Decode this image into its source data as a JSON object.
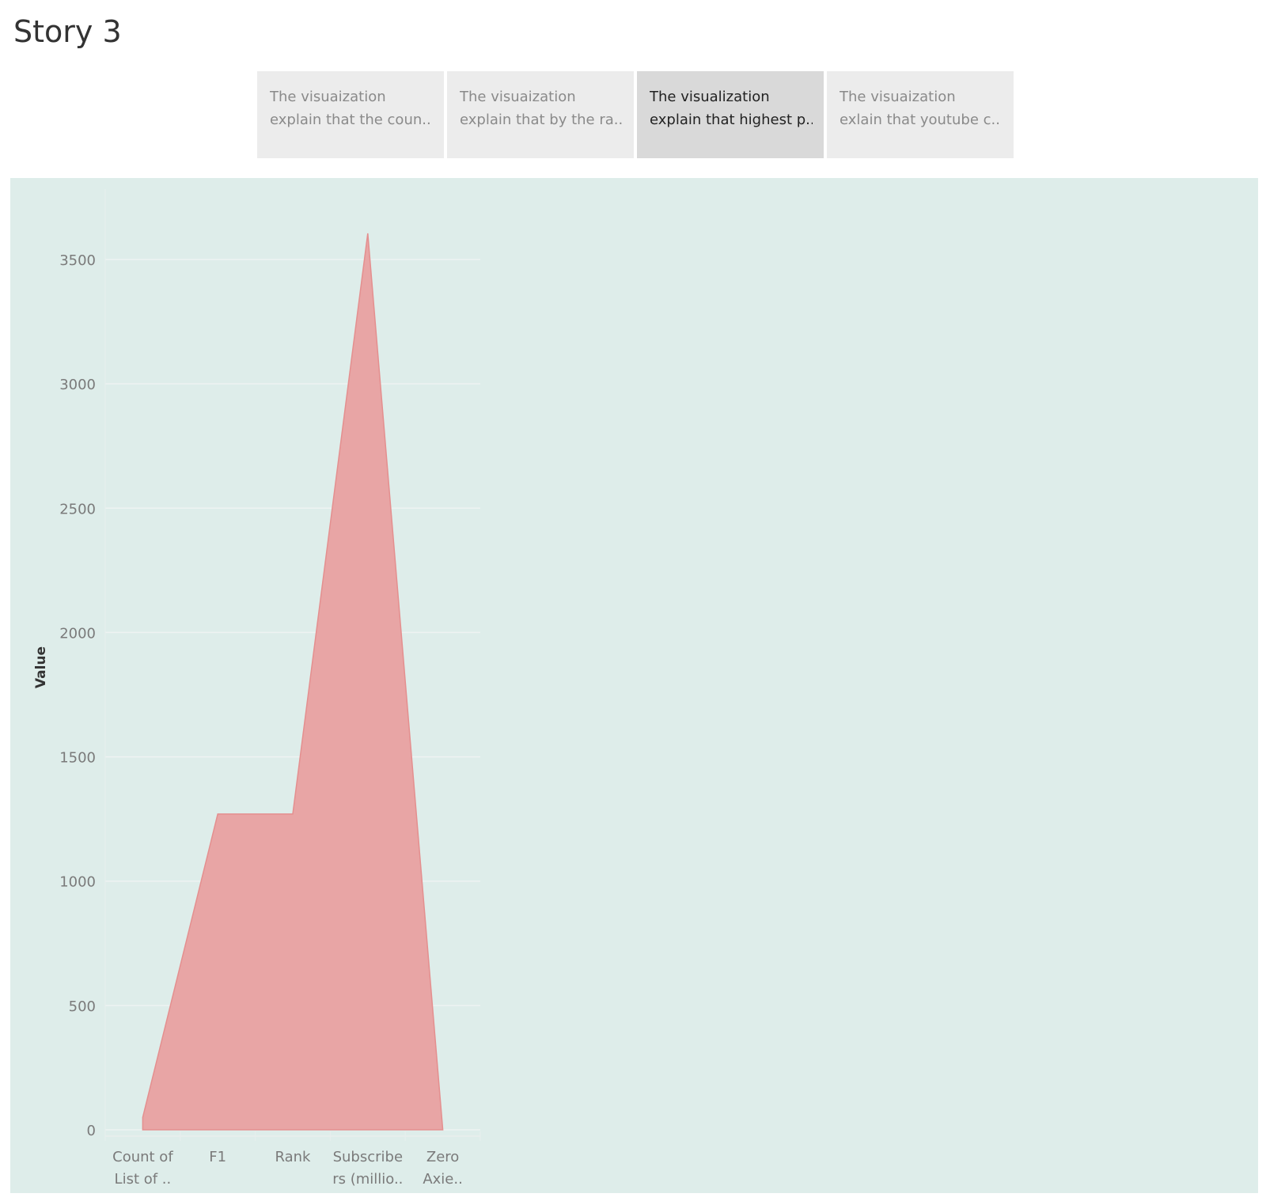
{
  "story": {
    "title": "Story 3",
    "tabs": [
      {
        "line1": "The visuaization",
        "line2": "explain that the coun..",
        "active": false
      },
      {
        "line1": "The visuaization",
        "line2": "explain that by the ra..",
        "active": false
      },
      {
        "line1": "The  visualization",
        "line2": "explain that highest p..",
        "active": true
      },
      {
        "line1": "The visuaization",
        "line2": "exlain that  youtube c..",
        "active": false
      }
    ]
  },
  "colors": {
    "panel_background": "#deedea",
    "area_fill": "#e8a5a5",
    "area_stroke": "#e48f8f",
    "gridline": "#eef3f2"
  },
  "chart_data": {
    "type": "area",
    "ylabel": "Value",
    "xlabel": "",
    "ylim": [
      0,
      3750
    ],
    "yticks": [
      0,
      500,
      1000,
      1500,
      2000,
      2500,
      3000,
      3500
    ],
    "categories": [
      [
        "Count of",
        "List of .."
      ],
      [
        "F1"
      ],
      [
        "Rank"
      ],
      [
        "Subscribe",
        "rs (millio.."
      ],
      [
        "Zero",
        "Axie.."
      ]
    ],
    "values": [
      50,
      1270,
      1270,
      3605,
      0
    ]
  }
}
